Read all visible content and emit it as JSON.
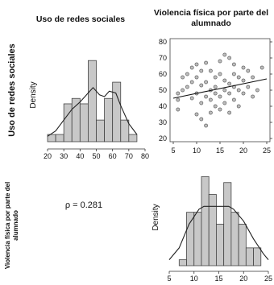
{
  "col_titles": [
    "Uso de redes sociales",
    "Violencia física por parte del",
    "alumnado"
  ],
  "row_labels": {
    "row1": "Uso de redes sociales",
    "row2_line1": "Violencia física por parte del",
    "row2_line2": "alumnado"
  },
  "correlation_text": "ρ = 0.281",
  "chart_data": [
    {
      "type": "bar",
      "name_label": "Density",
      "xlim": [
        20,
        80
      ],
      "xticks": [
        "20",
        "30",
        "40",
        "50",
        "60",
        "70",
        "80"
      ],
      "bin_edges": [
        20,
        25,
        30,
        35,
        40,
        45,
        50,
        55,
        60,
        65,
        70,
        75
      ],
      "values": [
        0.004,
        0.004,
        0.021,
        0.024,
        0.021,
        0.045,
        0.012,
        0.024,
        0.033,
        0.012,
        0.004
      ],
      "density_curve_x": [
        20,
        25,
        30,
        35,
        40,
        45,
        48,
        52,
        55,
        58,
        62,
        65,
        70,
        75
      ],
      "density_curve_y": [
        0.003,
        0.006,
        0.012,
        0.018,
        0.022,
        0.027,
        0.03,
        0.026,
        0.025,
        0.028,
        0.027,
        0.02,
        0.01,
        0.004
      ],
      "ylim": [
        0,
        0.05
      ]
    },
    {
      "type": "scatter",
      "xlim": [
        5,
        25
      ],
      "ylim": [
        20,
        80
      ],
      "xticks": [
        "5",
        "10",
        "15",
        "20",
        "25"
      ],
      "yticks": [
        "20",
        "30",
        "40",
        "50",
        "60",
        "70",
        "80"
      ],
      "x": [
        6,
        6,
        6,
        7,
        7,
        8,
        8,
        9,
        9,
        9,
        10,
        10,
        10,
        10,
        11,
        11,
        11,
        11,
        12,
        12,
        12,
        12,
        13,
        13,
        13,
        13,
        14,
        14,
        14,
        14,
        15,
        15,
        15,
        15,
        16,
        16,
        16,
        16,
        17,
        17,
        17,
        17,
        18,
        18,
        18,
        18,
        19,
        19,
        19,
        20,
        20,
        20,
        21,
        21,
        22,
        22,
        23,
        24
      ],
      "y": [
        48,
        44,
        38,
        50,
        58,
        52,
        60,
        45,
        55,
        64,
        35,
        48,
        58,
        66,
        32,
        42,
        53,
        62,
        28,
        46,
        55,
        67,
        36,
        44,
        50,
        62,
        40,
        48,
        58,
        52,
        38,
        46,
        60,
        68,
        42,
        50,
        56,
        72,
        36,
        48,
        54,
        70,
        44,
        52,
        60,
        66,
        40,
        50,
        58,
        48,
        56,
        64,
        52,
        62,
        46,
        58,
        50,
        64
      ],
      "fit_line": {
        "x": [
          5,
          25
        ],
        "y": [
          45,
          57
        ]
      }
    },
    {
      "type": "bar",
      "name_label": "Density",
      "xlim": [
        5,
        25
      ],
      "xticks": [
        "5",
        "10",
        "15",
        "20",
        "25"
      ],
      "bin_edges": [
        7,
        8.5,
        10,
        11.5,
        13,
        14.5,
        16,
        17.5,
        19,
        20.5,
        22,
        23.5
      ],
      "values": [
        0.01,
        0.09,
        0.09,
        0.15,
        0.12,
        0.07,
        0.14,
        0.09,
        0.07,
        0.03,
        0.03
      ],
      "density_curve_x": [
        5,
        7,
        9,
        11,
        12,
        13,
        15,
        17,
        18,
        20,
        22,
        24,
        25
      ],
      "density_curve_y": [
        0.01,
        0.03,
        0.07,
        0.095,
        0.1,
        0.1,
        0.1,
        0.1,
        0.095,
        0.075,
        0.045,
        0.02,
        0.01
      ],
      "ylim": [
        0,
        0.16
      ]
    }
  ]
}
